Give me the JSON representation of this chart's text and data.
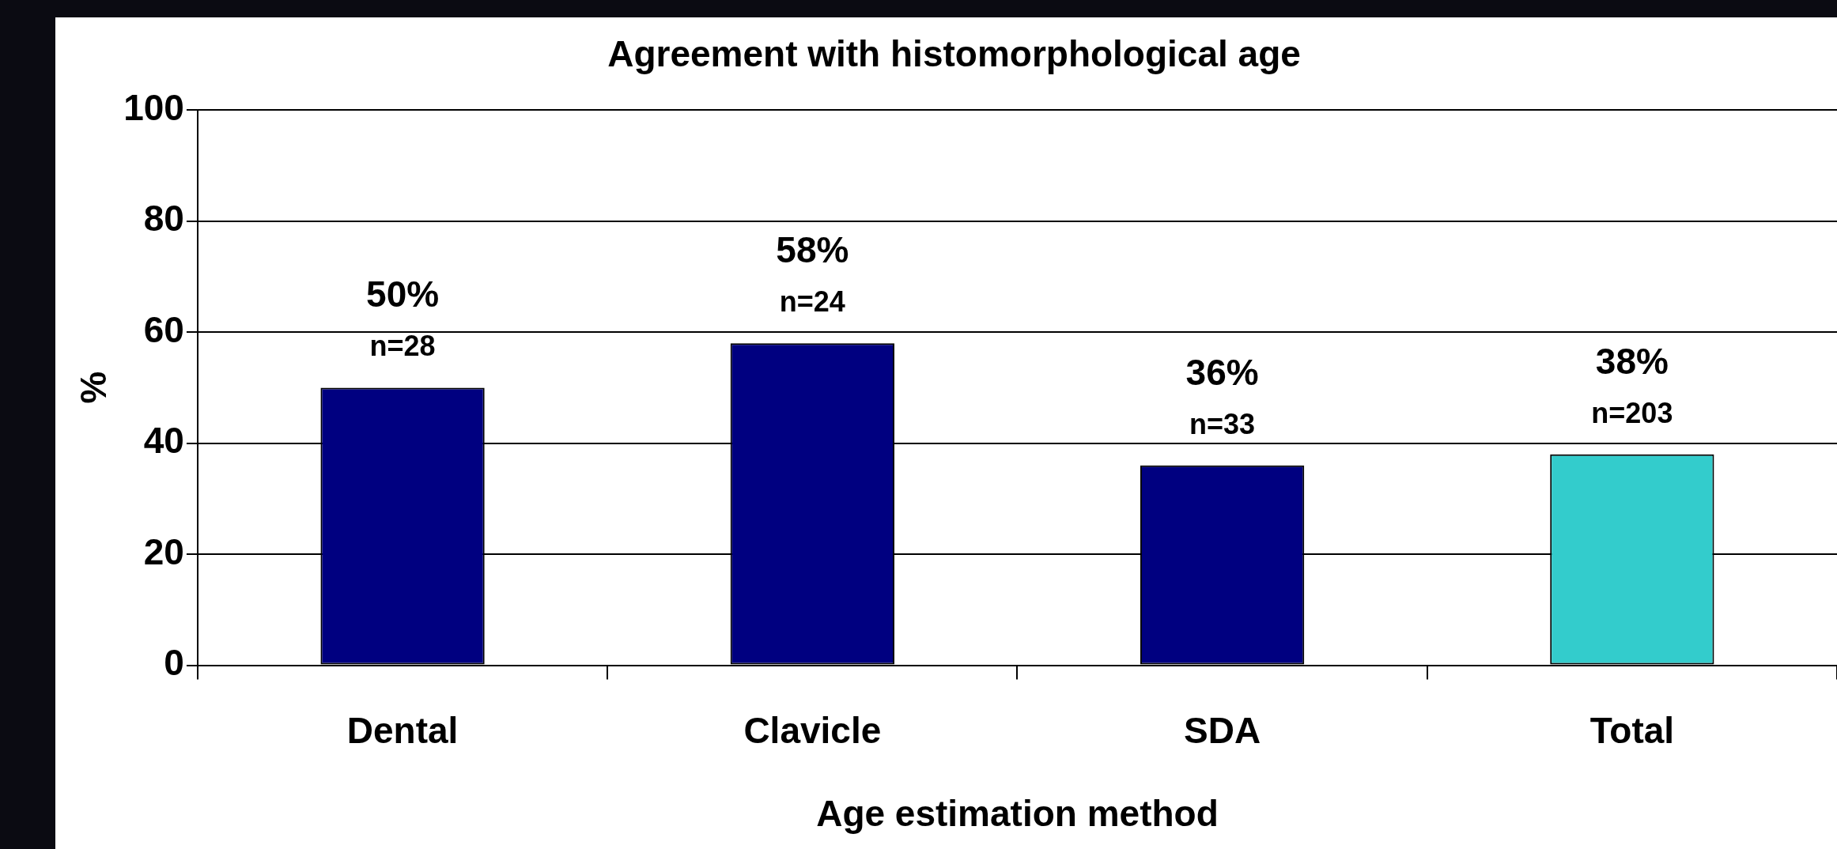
{
  "chart_data": {
    "type": "bar",
    "title": "Agreement with histomorphological age",
    "xlabel": "Age estimation method",
    "ylabel": "%",
    "categories": [
      "Dental",
      "Clavicle",
      "SDA",
      "Total"
    ],
    "values": [
      50,
      58,
      36,
      38
    ],
    "colors": [
      "#000080",
      "#000080",
      "#000080",
      "#33cccc"
    ],
    "value_labels": [
      "50%\nn=28",
      "58%\nn=24",
      "36%\nn=33",
      "38%\nn=203"
    ],
    "ylim": [
      0,
      100
    ],
    "yticks": [
      0,
      20,
      40,
      60,
      80,
      100
    ],
    "grid": "y",
    "legend": false
  }
}
